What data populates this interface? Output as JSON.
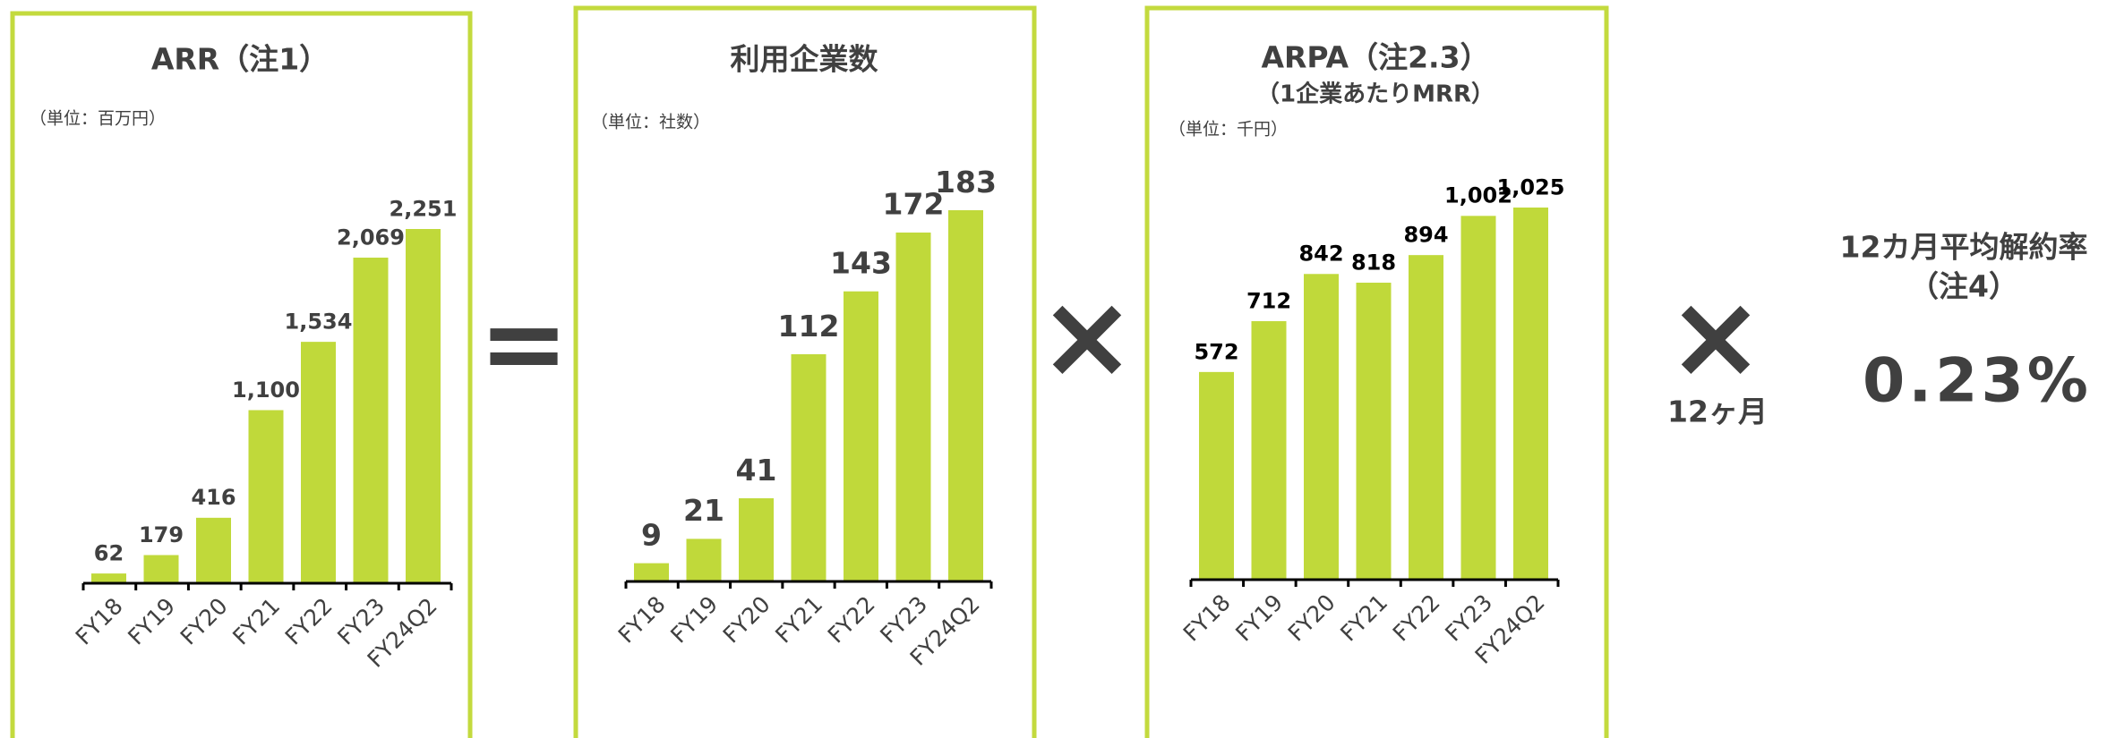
{
  "chart_data": [
    {
      "type": "bar",
      "title": "ARR（注1）",
      "units": "（単位：百万円）",
      "color": "#c0d93a",
      "categories": [
        "FY18",
        "FY19",
        "FY20",
        "FY21",
        "FY22",
        "FY23",
        "FY24Q2"
      ],
      "values": [
        62,
        179,
        416,
        1100,
        1534,
        2069,
        2251
      ],
      "value_labels": [
        "62",
        "179",
        "416",
        "1,100",
        "1,534",
        "2,069",
        "2,251"
      ]
    },
    {
      "type": "bar",
      "title": "利用企業数",
      "units": "（単位：社数）",
      "color": "#c0d93a",
      "categories": [
        "FY18",
        "FY19",
        "FY20",
        "FY21",
        "FY22",
        "FY23",
        "FY24Q2"
      ],
      "values": [
        9,
        21,
        41,
        112,
        143,
        172,
        183
      ]
    },
    {
      "type": "bar",
      "title": "ARPA（注2.3）",
      "subtitle": "（1企業あたりMRR）",
      "units": "（単位：千円）",
      "color": "#c0d93a",
      "categories": [
        "FY18",
        "FY19",
        "FY20",
        "FY21",
        "FY22",
        "FY23",
        "FY24Q2"
      ],
      "values": [
        572,
        712,
        842,
        818,
        894,
        1002,
        1025
      ],
      "value_labels": [
        "572",
        "712",
        "842",
        "818",
        "894",
        "1,002",
        "1,025"
      ]
    }
  ],
  "operators": [
    "=",
    "×",
    "×"
  ],
  "period": "12ヶ月",
  "churn": {
    "title": "12カ月平均解約率",
    "note": "（注4）",
    "value": "0.23%"
  }
}
